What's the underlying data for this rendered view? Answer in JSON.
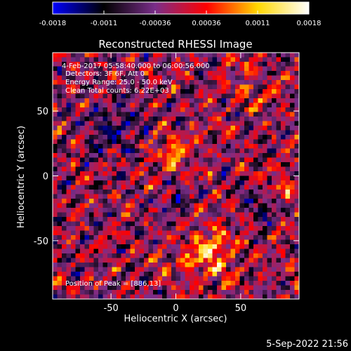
{
  "colorbar": {
    "ticks": [
      "-0.0018",
      "-0.0011",
      "-0.00036",
      "0.00036",
      "0.0011",
      "0.0018"
    ],
    "colors": [
      "#0000ff",
      "#000000",
      "#7a2e8a",
      "#ff0000",
      "#ffd700",
      "#ffffff"
    ]
  },
  "chart_data": {
    "type": "heatmap",
    "title": "Reconstructed RHESSI Image",
    "xlabel": "Heliocentric X (arcsec)",
    "ylabel": "Heliocentric Y (arcsec)",
    "xlim": [
      -95,
      95
    ],
    "ylim": [
      -95,
      95
    ],
    "xticks": [
      "-50",
      "0",
      "50"
    ],
    "yticks": [
      "50",
      "0",
      "-50"
    ],
    "value_range": [
      -0.0018,
      0.0018
    ],
    "annotations": {
      "line1": "4-Feb-2017 05:58:40.000 to 06:00:56.000",
      "line2": "Detectors: 3F 6F, Att 0",
      "line3": "Energy Range: 25.0 - 50.0 keV",
      "line4": "Clean   Total counts: 6.22E+03",
      "peak": "Position of Peak = [886,13]"
    }
  },
  "footer": {
    "timestamp": "5-Sep-2022 21:56"
  }
}
